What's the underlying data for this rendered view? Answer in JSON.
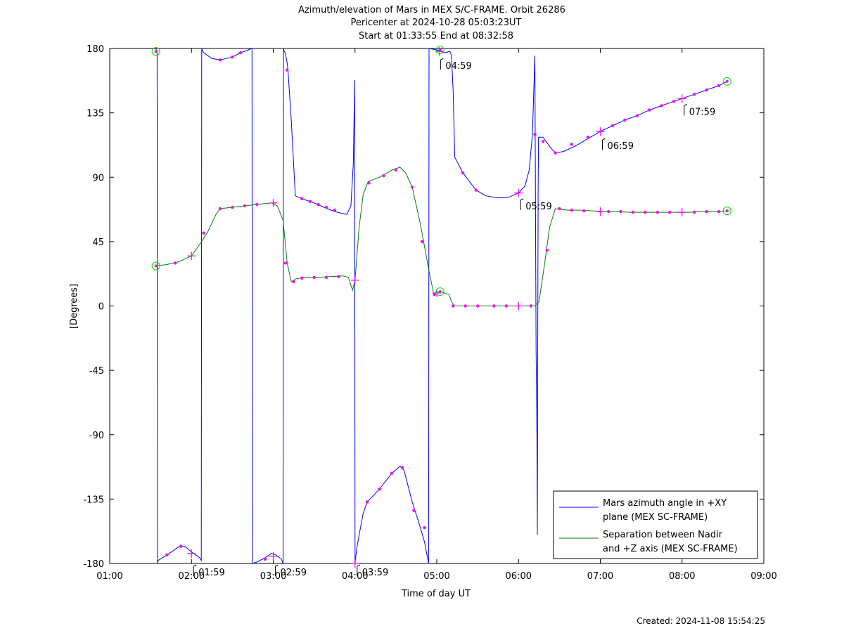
{
  "chart_data": {
    "type": "line",
    "title": "Azimuth/elevation of Mars in MEX S/C-FRAME.  Orbit 26286",
    "subtitle_lines": [
      "Pericenter at 2024-10-28 05:03:23UT",
      "Start at 01:33:55 End at 08:32:58"
    ],
    "xlabel": "Time of day UT",
    "ylabel": "[Degrees]",
    "xlim": [
      1.0,
      9.0
    ],
    "ylim": [
      -180,
      180
    ],
    "x_unit": "hours of day (UT)",
    "x_ticks": [
      1,
      2,
      3,
      4,
      5,
      6,
      7,
      8,
      9
    ],
    "x_tick_labels": [
      "01:00",
      "02:00",
      "03:00",
      "04:00",
      "05:00",
      "06:00",
      "07:00",
      "08:00",
      "09:00"
    ],
    "y_ticks": [
      180,
      135,
      90,
      45,
      0,
      -45,
      -90,
      -135,
      -180
    ],
    "y_tick_labels": [
      "180",
      "135",
      "90",
      "45",
      "0",
      "-45",
      "-90",
      "-135",
      "-180"
    ],
    "grid": false,
    "legend_position": "bottom-right",
    "series": [
      {
        "name": "Mars azimuth angle in +XY plane (MEX SC-FRAME)",
        "legend_lines": [
          "Mars azimuth angle in +XY",
          "plane (MEX SC-FRAME)"
        ],
        "color": "#0000ff",
        "points": [
          [
            1.565,
            180
          ],
          [
            1.57,
            179
          ],
          [
            1.575,
            178
          ],
          [
            1.58,
            176
          ],
          [
            1.585,
            -180
          ],
          [
            1.59,
            -178
          ],
          [
            1.7,
            -174
          ],
          [
            1.78,
            -171
          ],
          [
            1.85,
            -168
          ],
          [
            1.92,
            -168
          ],
          [
            1.96,
            -170
          ],
          [
            2.0,
            -172
          ],
          [
            2.05,
            -174
          ],
          [
            2.1,
            -176
          ],
          [
            2.12,
            -178
          ],
          [
            2.125,
            180
          ],
          [
            2.13,
            179
          ],
          [
            2.15,
            177
          ],
          [
            2.2,
            175
          ],
          [
            2.25,
            173
          ],
          [
            2.35,
            172
          ],
          [
            2.5,
            174
          ],
          [
            2.6,
            177
          ],
          [
            2.74,
            180
          ],
          [
            2.745,
            -180
          ],
          [
            2.8,
            -179
          ],
          [
            2.9,
            -176
          ],
          [
            2.98,
            -173
          ],
          [
            3.03,
            -174
          ],
          [
            3.1,
            -177
          ],
          [
            3.12,
            -180
          ],
          [
            3.125,
            180
          ],
          [
            3.13,
            179
          ],
          [
            3.15,
            176
          ],
          [
            3.17,
            170
          ],
          [
            3.18,
            165
          ],
          [
            3.22,
            130
          ],
          [
            3.27,
            77
          ],
          [
            3.35,
            75
          ],
          [
            3.5,
            72
          ],
          [
            3.62,
            69
          ],
          [
            3.75,
            66
          ],
          [
            3.9,
            64
          ],
          [
            3.95,
            70
          ],
          [
            3.98,
            100
          ],
          [
            3.995,
            158
          ],
          [
            4.0,
            -180
          ],
          [
            4.02,
            -170
          ],
          [
            4.05,
            -160
          ],
          [
            4.1,
            -145
          ],
          [
            4.15,
            -137
          ],
          [
            4.3,
            -128
          ],
          [
            4.45,
            -117
          ],
          [
            4.55,
            -112
          ],
          [
            4.6,
            -115
          ],
          [
            4.7,
            -137
          ],
          [
            4.8,
            -155
          ],
          [
            4.85,
            -165
          ],
          [
            4.9,
            -180
          ],
          [
            4.905,
            180
          ],
          [
            5.0,
            179
          ],
          [
            5.05,
            178
          ],
          [
            5.1,
            177
          ],
          [
            5.16,
            178
          ],
          [
            5.18,
            175
          ],
          [
            5.2,
            150
          ],
          [
            5.22,
            104
          ],
          [
            5.32,
            93
          ],
          [
            5.48,
            81
          ],
          [
            5.6,
            77
          ],
          [
            5.75,
            75.5
          ],
          [
            5.88,
            76
          ],
          [
            6.0,
            79
          ],
          [
            6.08,
            84
          ],
          [
            6.13,
            95
          ],
          [
            6.17,
            120
          ],
          [
            6.2,
            175
          ],
          [
            6.215,
            -30
          ],
          [
            6.225,
            -90
          ],
          [
            6.23,
            -160
          ],
          [
            6.235,
            -20
          ],
          [
            6.24,
            80
          ],
          [
            6.245,
            118
          ],
          [
            6.3,
            118
          ],
          [
            6.4,
            110
          ],
          [
            6.45,
            107
          ],
          [
            6.55,
            108
          ],
          [
            6.7,
            112
          ],
          [
            6.85,
            117
          ],
          [
            7.0,
            122
          ],
          [
            7.15,
            126
          ],
          [
            7.3,
            130
          ],
          [
            7.45,
            133
          ],
          [
            7.6,
            137
          ],
          [
            7.75,
            140
          ],
          [
            7.9,
            143
          ],
          [
            8.0,
            145
          ],
          [
            8.15,
            148
          ],
          [
            8.3,
            151
          ],
          [
            8.45,
            154
          ],
          [
            8.55,
            157
          ]
        ]
      },
      {
        "name": "Separation between Nadir and +Z axis (MEX SC-FRAME)",
        "legend_lines": [
          "Separation between Nadir",
          "and +Z axis (MEX SC-FRAME)"
        ],
        "color": "#008000",
        "points": [
          [
            1.565,
            28
          ],
          [
            1.7,
            29
          ],
          [
            1.85,
            31
          ],
          [
            2.0,
            35
          ],
          [
            2.1,
            43
          ],
          [
            2.2,
            52
          ],
          [
            2.3,
            64
          ],
          [
            2.35,
            68
          ],
          [
            2.5,
            69
          ],
          [
            2.65,
            70
          ],
          [
            2.8,
            71
          ],
          [
            2.98,
            72
          ],
          [
            3.05,
            70
          ],
          [
            3.12,
            60
          ],
          [
            3.17,
            30
          ],
          [
            3.22,
            17
          ],
          [
            3.28,
            19
          ],
          [
            3.4,
            20
          ],
          [
            3.55,
            20
          ],
          [
            3.7,
            20.5
          ],
          [
            3.85,
            21
          ],
          [
            3.92,
            20
          ],
          [
            3.97,
            11
          ],
          [
            4.0,
            18
          ],
          [
            4.05,
            55
          ],
          [
            4.1,
            78
          ],
          [
            4.16,
            87
          ],
          [
            4.3,
            90
          ],
          [
            4.45,
            95
          ],
          [
            4.55,
            97
          ],
          [
            4.62,
            93
          ],
          [
            4.7,
            83
          ],
          [
            4.8,
            57
          ],
          [
            4.9,
            26
          ],
          [
            4.96,
            9
          ],
          [
            5.05,
            10
          ],
          [
            5.1,
            9
          ],
          [
            5.15,
            8
          ],
          [
            5.18,
            3
          ],
          [
            5.22,
            0
          ],
          [
            5.4,
            0
          ],
          [
            5.55,
            0
          ],
          [
            5.7,
            0
          ],
          [
            5.85,
            0
          ],
          [
            6.0,
            0
          ],
          [
            6.15,
            0
          ],
          [
            6.2,
            0
          ],
          [
            6.25,
            3
          ],
          [
            6.32,
            30
          ],
          [
            6.38,
            55
          ],
          [
            6.45,
            68
          ],
          [
            6.6,
            67
          ],
          [
            6.75,
            67
          ],
          [
            6.9,
            66.5
          ],
          [
            7.05,
            66
          ],
          [
            7.2,
            66
          ],
          [
            7.35,
            65.5
          ],
          [
            7.5,
            65.5
          ],
          [
            7.65,
            65.5
          ],
          [
            7.8,
            65.5
          ],
          [
            7.95,
            65.5
          ],
          [
            8.1,
            65.5
          ],
          [
            8.25,
            66
          ],
          [
            8.4,
            66
          ],
          [
            8.55,
            66.5
          ]
        ]
      }
    ],
    "marker_points": {
      "color": "#ff00ff",
      "small": [
        [
          1.7,
          -174
        ],
        [
          1.87,
          -168
        ],
        [
          2.35,
          172
        ],
        [
          2.5,
          174
        ],
        [
          2.6,
          177
        ],
        [
          2.9,
          -177
        ],
        [
          3.17,
          165
        ],
        [
          3.35,
          75
        ],
        [
          3.45,
          73
        ],
        [
          3.55,
          71
        ],
        [
          3.65,
          69
        ],
        [
          3.75,
          67
        ],
        [
          4.15,
          -137
        ],
        [
          4.3,
          -128
        ],
        [
          4.45,
          -117
        ],
        [
          4.58,
          -113
        ],
        [
          4.72,
          -143
        ],
        [
          4.85,
          -155
        ],
        [
          5.32,
          93
        ],
        [
          5.48,
          81
        ],
        [
          6.2,
          120
        ],
        [
          6.3,
          115
        ],
        [
          6.45,
          107
        ],
        [
          6.65,
          113
        ],
        [
          6.85,
          118
        ],
        [
          7.15,
          126
        ],
        [
          7.3,
          130
        ],
        [
          7.45,
          133
        ],
        [
          7.6,
          137
        ],
        [
          7.75,
          140
        ],
        [
          7.9,
          143
        ],
        [
          8.15,
          148
        ],
        [
          8.3,
          151
        ],
        [
          8.45,
          154
        ],
        [
          1.8,
          30
        ],
        [
          2.15,
          51
        ],
        [
          2.35,
          68
        ],
        [
          2.5,
          69
        ],
        [
          2.65,
          70
        ],
        [
          2.8,
          71
        ],
        [
          3.15,
          30
        ],
        [
          3.25,
          17
        ],
        [
          3.35,
          19.5
        ],
        [
          3.5,
          20
        ],
        [
          3.65,
          20
        ],
        [
          3.8,
          20.5
        ],
        [
          4.17,
          86
        ],
        [
          4.35,
          91
        ],
        [
          4.5,
          95
        ],
        [
          4.7,
          83
        ],
        [
          4.82,
          45
        ],
        [
          4.97,
          8
        ],
        [
          5.2,
          0
        ],
        [
          5.35,
          0
        ],
        [
          5.5,
          0
        ],
        [
          5.7,
          0
        ],
        [
          5.85,
          0
        ],
        [
          6.15,
          0
        ],
        [
          6.35,
          39
        ],
        [
          6.5,
          68
        ],
        [
          6.65,
          67
        ],
        [
          6.8,
          66.5
        ],
        [
          7.1,
          66
        ],
        [
          7.25,
          66
        ],
        [
          7.4,
          65.5
        ],
        [
          7.55,
          65.5
        ],
        [
          7.7,
          65.5
        ],
        [
          7.85,
          65.5
        ],
        [
          8.15,
          65.5
        ],
        [
          8.3,
          66
        ],
        [
          8.45,
          66
        ]
      ],
      "plus": [
        [
          2.0,
          -173
        ],
        [
          3.0,
          -175
        ],
        [
          4.0,
          -180
        ],
        [
          5.03,
          178
        ],
        [
          6.0,
          79
        ],
        [
          7.0,
          122
        ],
        [
          8.0,
          145
        ],
        [
          2.0,
          35
        ],
        [
          3.0,
          72
        ],
        [
          4.0,
          18
        ],
        [
          5.0,
          9
        ],
        [
          6.0,
          0
        ],
        [
          7.0,
          66
        ],
        [
          8.0,
          65.5
        ]
      ],
      "circle_color": "#00dd00",
      "circle": [
        [
          1.565,
          178
        ],
        [
          5.04,
          179
        ],
        [
          8.55,
          157
        ],
        [
          1.565,
          28
        ],
        [
          5.04,
          10
        ],
        [
          8.55,
          66.5
        ]
      ]
    },
    "annotations": [
      {
        "text": "01:59",
        "x": 2.0,
        "y": -180
      },
      {
        "text": "02:59",
        "x": 3.0,
        "y": -180
      },
      {
        "text": "03:59",
        "x": 4.0,
        "y": -180
      },
      {
        "text": "04:59",
        "x": 5.02,
        "y": 174
      },
      {
        "text": "05:59",
        "x": 6.0,
        "y": 76
      },
      {
        "text": "06:59",
        "x": 7.0,
        "y": 118
      },
      {
        "text": "07:59",
        "x": 8.0,
        "y": 142
      }
    ]
  },
  "footer": {
    "created": "Created: 2024-11-08 15:54:25"
  }
}
